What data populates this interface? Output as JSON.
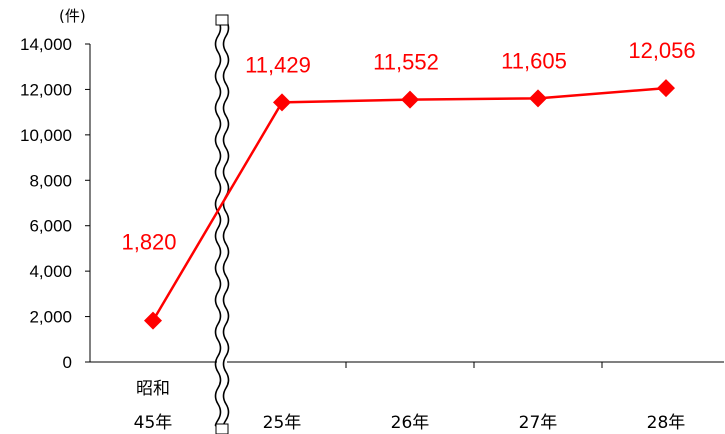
{
  "chart_data": {
    "type": "line",
    "unit_label": "(件)",
    "categories": [
      [
        "昭和",
        "45年"
      ],
      [
        "25年"
      ],
      [
        "26年"
      ],
      [
        "27年"
      ],
      [
        "28年"
      ]
    ],
    "values": [
      1820,
      11429,
      11552,
      11605,
      12056
    ],
    "value_labels": [
      "1,820",
      "11,429",
      "11,552",
      "11,605",
      "12,056"
    ],
    "ylim": [
      0,
      14000
    ],
    "yticks": [
      0,
      2000,
      4000,
      6000,
      8000,
      10000,
      12000,
      14000
    ],
    "ytick_labels": [
      "0",
      "2,000",
      "4,000",
      "6,000",
      "8,000",
      "10,000",
      "12,000",
      "14,000"
    ],
    "axis_break_after_category": 0,
    "grid": false,
    "series_color": "#ff0000",
    "axis_color": "#000000"
  }
}
